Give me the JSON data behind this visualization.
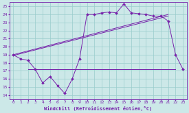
{
  "background_color": "#cce8e8",
  "grid_color": "#99cccc",
  "line_color": "#7722aa",
  "xlabel": "Windchill (Refroidissement éolien,°C)",
  "xlim": [
    -0.5,
    23.5
  ],
  "ylim": [
    13.5,
    25.5
  ],
  "xticks": [
    0,
    1,
    2,
    3,
    4,
    5,
    6,
    7,
    8,
    9,
    10,
    11,
    12,
    13,
    14,
    15,
    16,
    17,
    18,
    19,
    20,
    21,
    22,
    23
  ],
  "yticks": [
    14,
    15,
    16,
    17,
    18,
    19,
    20,
    21,
    22,
    23,
    24,
    25
  ],
  "noisy_x": [
    0,
    1,
    2,
    3,
    4,
    5,
    6,
    7,
    8,
    9,
    10,
    11,
    12,
    13,
    14,
    15,
    16,
    17,
    18,
    19,
    20,
    21,
    22,
    23
  ],
  "noisy_y": [
    19.0,
    18.5,
    18.3,
    17.2,
    15.5,
    16.3,
    15.2,
    14.2,
    16.0,
    18.5,
    24.0,
    24.0,
    24.2,
    24.3,
    24.2,
    25.3,
    24.2,
    24.1,
    24.0,
    23.8,
    23.8,
    23.2,
    19.0,
    17.2
  ],
  "line1_x": [
    0,
    21
  ],
  "line1_y": [
    18.9,
    23.8
  ],
  "line2_x": [
    0,
    21
  ],
  "line2_y": [
    19.0,
    24.0
  ],
  "hline_y": 17.2,
  "hline_x_start": 2,
  "hline_x_end": 22,
  "marker": "D",
  "markersize": 2.0,
  "lw": 0.7
}
